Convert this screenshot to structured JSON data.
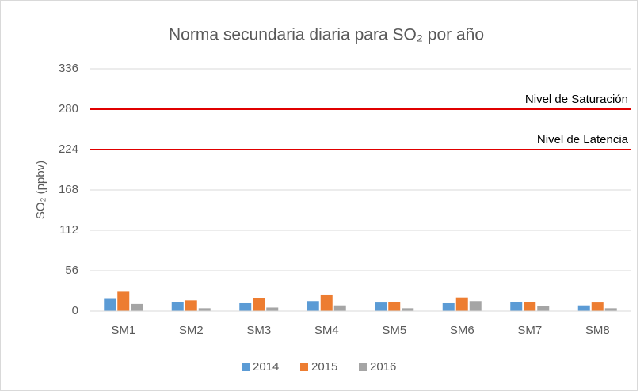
{
  "chart_data": {
    "type": "bar",
    "title": "Norma secundaria diaria para SO₂ por año",
    "y_label": "SO₂ (ppbv)",
    "categories": [
      "SM1",
      "SM2",
      "SM3",
      "SM4",
      "SM5",
      "SM6",
      "SM7",
      "SM8"
    ],
    "series": [
      {
        "name": "2014",
        "color": "#5b9bd5",
        "values": [
          17,
          13,
          11,
          14,
          12,
          11,
          13,
          8
        ]
      },
      {
        "name": "2015",
        "color": "#ed7d31",
        "values": [
          27,
          15,
          18,
          22,
          13,
          19,
          13,
          12
        ]
      },
      {
        "name": "2016",
        "color": "#a5a5a5",
        "values": [
          10,
          4,
          5,
          8,
          4,
          14,
          7,
          4
        ]
      }
    ],
    "reference_lines": [
      {
        "label": "Nivel de Saturación",
        "value": 280,
        "color": "#e00000"
      },
      {
        "label": "Nivel de Latencia",
        "value": 224,
        "color": "#e00000"
      }
    ],
    "ylim": [
      0,
      336
    ],
    "yticks": [
      0,
      56,
      112,
      168,
      224,
      280,
      336
    ],
    "grid": true,
    "legend": "bottom"
  }
}
